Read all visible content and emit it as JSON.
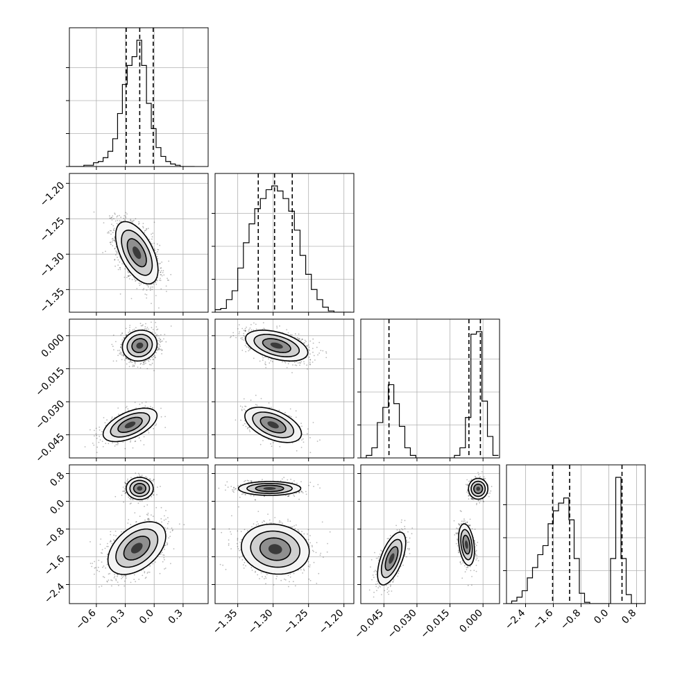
{
  "chart_data": {
    "type": "corner",
    "parameters": [
      {
        "range": [
          -0.88,
          0.56
        ],
        "ticks": [
          -0.6,
          -0.3,
          0.0,
          0.3
        ],
        "tick_labels": [
          "−0.6",
          "−0.3",
          "0.0",
          "0.3"
        ],
        "quantiles": [
          -0.29,
          -0.15,
          -0.01
        ],
        "hist_bins": [
          -0.88,
          -0.83,
          -0.78,
          -0.73,
          -0.68,
          -0.63,
          -0.58,
          -0.53,
          -0.48,
          -0.43,
          -0.38,
          -0.33,
          -0.28,
          -0.23,
          -0.18,
          -0.13,
          -0.08,
          -0.03,
          0.02,
          0.07,
          0.12,
          0.17,
          0.22,
          0.27,
          0.32,
          0.37,
          0.42
        ],
        "hist_counts": [
          0.0,
          0.0,
          0.0,
          0.01,
          0.01,
          0.03,
          0.04,
          0.07,
          0.12,
          0.22,
          0.42,
          0.65,
          0.8,
          0.87,
          1.0,
          0.8,
          0.5,
          0.3,
          0.15,
          0.08,
          0.04,
          0.02,
          0.01,
          0.0,
          0.0,
          0.0
        ]
      },
      {
        "range": [
          -1.382,
          -1.186
        ],
        "ticks": [
          -1.35,
          -1.3,
          -1.25,
          -1.2
        ],
        "tick_labels": [
          "−1.35",
          "−1.30",
          "−1.25",
          "−1.20"
        ],
        "quantiles": [
          -1.321,
          -1.298,
          -1.273
        ],
        "hist_bins": [
          -1.382,
          -1.374,
          -1.366,
          -1.358,
          -1.35,
          -1.342,
          -1.334,
          -1.326,
          -1.318,
          -1.31,
          -1.302,
          -1.294,
          -1.286,
          -1.278,
          -1.27,
          -1.262,
          -1.254,
          -1.246,
          -1.238,
          -1.23,
          -1.222,
          -1.214,
          -1.206,
          -1.198,
          -1.19
        ],
        "hist_counts": [
          0.02,
          0.03,
          0.1,
          0.17,
          0.35,
          0.55,
          0.7,
          0.82,
          0.9,
          0.97,
          1.0,
          0.96,
          0.9,
          0.8,
          0.65,
          0.45,
          0.3,
          0.18,
          0.1,
          0.04,
          0.01,
          0.0,
          0.0,
          0.0
        ]
      },
      {
        "range": [
          -0.0555,
          0.0075
        ],
        "ticks": [
          -0.045,
          -0.03,
          -0.015,
          0.0
        ],
        "tick_labels": [
          "−0.045",
          "−0.030",
          "−0.015",
          "0.000"
        ],
        "quantiles": [
          -0.0427,
          -0.0064,
          -0.0012
        ],
        "hist_bins": [
          -0.0555,
          -0.053,
          -0.0505,
          -0.048,
          -0.0455,
          -0.043,
          -0.0405,
          -0.038,
          -0.0355,
          -0.033,
          -0.0305,
          -0.028,
          -0.0255,
          -0.023,
          -0.0205,
          -0.018,
          -0.0155,
          -0.013,
          -0.0105,
          -0.008,
          -0.0055,
          -0.003,
          -0.0005,
          0.002,
          0.0045,
          0.007
        ],
        "hist_counts": [
          0.0,
          0.02,
          0.08,
          0.28,
          0.4,
          0.58,
          0.43,
          0.25,
          0.08,
          0.02,
          0.0,
          0.0,
          0.0,
          0.0,
          0.0,
          0.0,
          0.0,
          0.02,
          0.08,
          0.32,
          0.98,
          1.0,
          0.45,
          0.17,
          0.02
        ]
      },
      {
        "range": [
          -2.95,
          1.05
        ],
        "ticks": [
          -2.4,
          -1.6,
          -0.8,
          0.0,
          0.8
        ],
        "tick_labels": [
          "−2.4",
          "−1.6",
          "−0.8",
          "0.0",
          "0.8"
        ],
        "quantiles": [
          -1.62,
          -1.13,
          0.38
        ],
        "hist_bins": [
          -2.95,
          -2.8,
          -2.65,
          -2.5,
          -2.35,
          -2.2,
          -2.05,
          -1.9,
          -1.75,
          -1.6,
          -1.45,
          -1.3,
          -1.15,
          -1.0,
          -0.85,
          -0.7,
          -0.55,
          -0.4,
          -0.25,
          -0.1,
          0.05,
          0.2,
          0.35,
          0.5,
          0.65,
          0.8,
          0.95,
          1.1
        ],
        "hist_counts": [
          0.0,
          0.02,
          0.05,
          0.1,
          0.2,
          0.28,
          0.38,
          0.45,
          0.62,
          0.72,
          0.78,
          0.82,
          0.65,
          0.35,
          0.08,
          0.01,
          0.0,
          0.0,
          0.0,
          0.0,
          0.35,
          0.98,
          0.35,
          0.07,
          0.0,
          0.0,
          0.0
        ]
      }
    ],
    "panels_2d": [
      {
        "row": 1,
        "col": 0,
        "clusters": [
          {
            "mean": [
              -0.18,
              -1.298
            ],
            "sd": [
              0.11,
              0.022
            ],
            "rho": -0.55,
            "weight": 1.0
          }
        ]
      },
      {
        "row": 2,
        "col": 0,
        "clusters": [
          {
            "mean": [
              -0.15,
              -0.0045
            ],
            "sd": [
              0.09,
              0.0035
            ],
            "rho": 0.1,
            "weight": 0.72
          },
          {
            "mean": [
              -0.25,
              -0.0405
            ],
            "sd": [
              0.14,
              0.0038
            ],
            "rho": 0.55,
            "weight": 0.28
          }
        ]
      },
      {
        "row": 3,
        "col": 0,
        "clusters": [
          {
            "mean": [
              -0.15,
              0.37
            ],
            "sd": [
              0.07,
              0.16
            ],
            "rho": 0.0,
            "weight": 0.3
          },
          {
            "mean": [
              -0.18,
              -1.35
            ],
            "sd": [
              0.15,
              0.38
            ],
            "rho": 0.45,
            "weight": 0.7
          }
        ]
      },
      {
        "row": 2,
        "col": 1,
        "clusters": [
          {
            "mean": [
              -1.295,
              -0.0045
            ],
            "sd": [
              0.022,
              0.0035
            ],
            "rho": -0.45,
            "weight": 0.72
          },
          {
            "mean": [
              -1.3,
              -0.0405
            ],
            "sd": [
              0.02,
              0.004
            ],
            "rho": -0.5,
            "weight": 0.28
          }
        ]
      },
      {
        "row": 3,
        "col": 1,
        "clusters": [
          {
            "mean": [
              -1.305,
              0.37
            ],
            "sd": [
              0.022,
              0.1
            ],
            "rho": 0.0,
            "weight": 0.3
          },
          {
            "mean": [
              -1.297,
              -1.38
            ],
            "sd": [
              0.024,
              0.36
            ],
            "rho": -0.1,
            "weight": 0.7
          }
        ]
      },
      {
        "row": 3,
        "col": 2,
        "clusters": [
          {
            "mean": [
              -0.0022,
              0.36
            ],
            "sd": [
              0.0022,
              0.15
            ],
            "rho": 0.0,
            "weight": 0.3
          },
          {
            "mean": [
              -0.0415,
              -1.65
            ],
            "sd": [
              0.0032,
              0.38
            ],
            "rho": 0.6,
            "weight": 0.35
          },
          {
            "mean": [
              -0.0075,
              -1.25
            ],
            "sd": [
              0.0018,
              0.3
            ],
            "rho": -0.3,
            "weight": 0.35
          }
        ]
      }
    ]
  }
}
